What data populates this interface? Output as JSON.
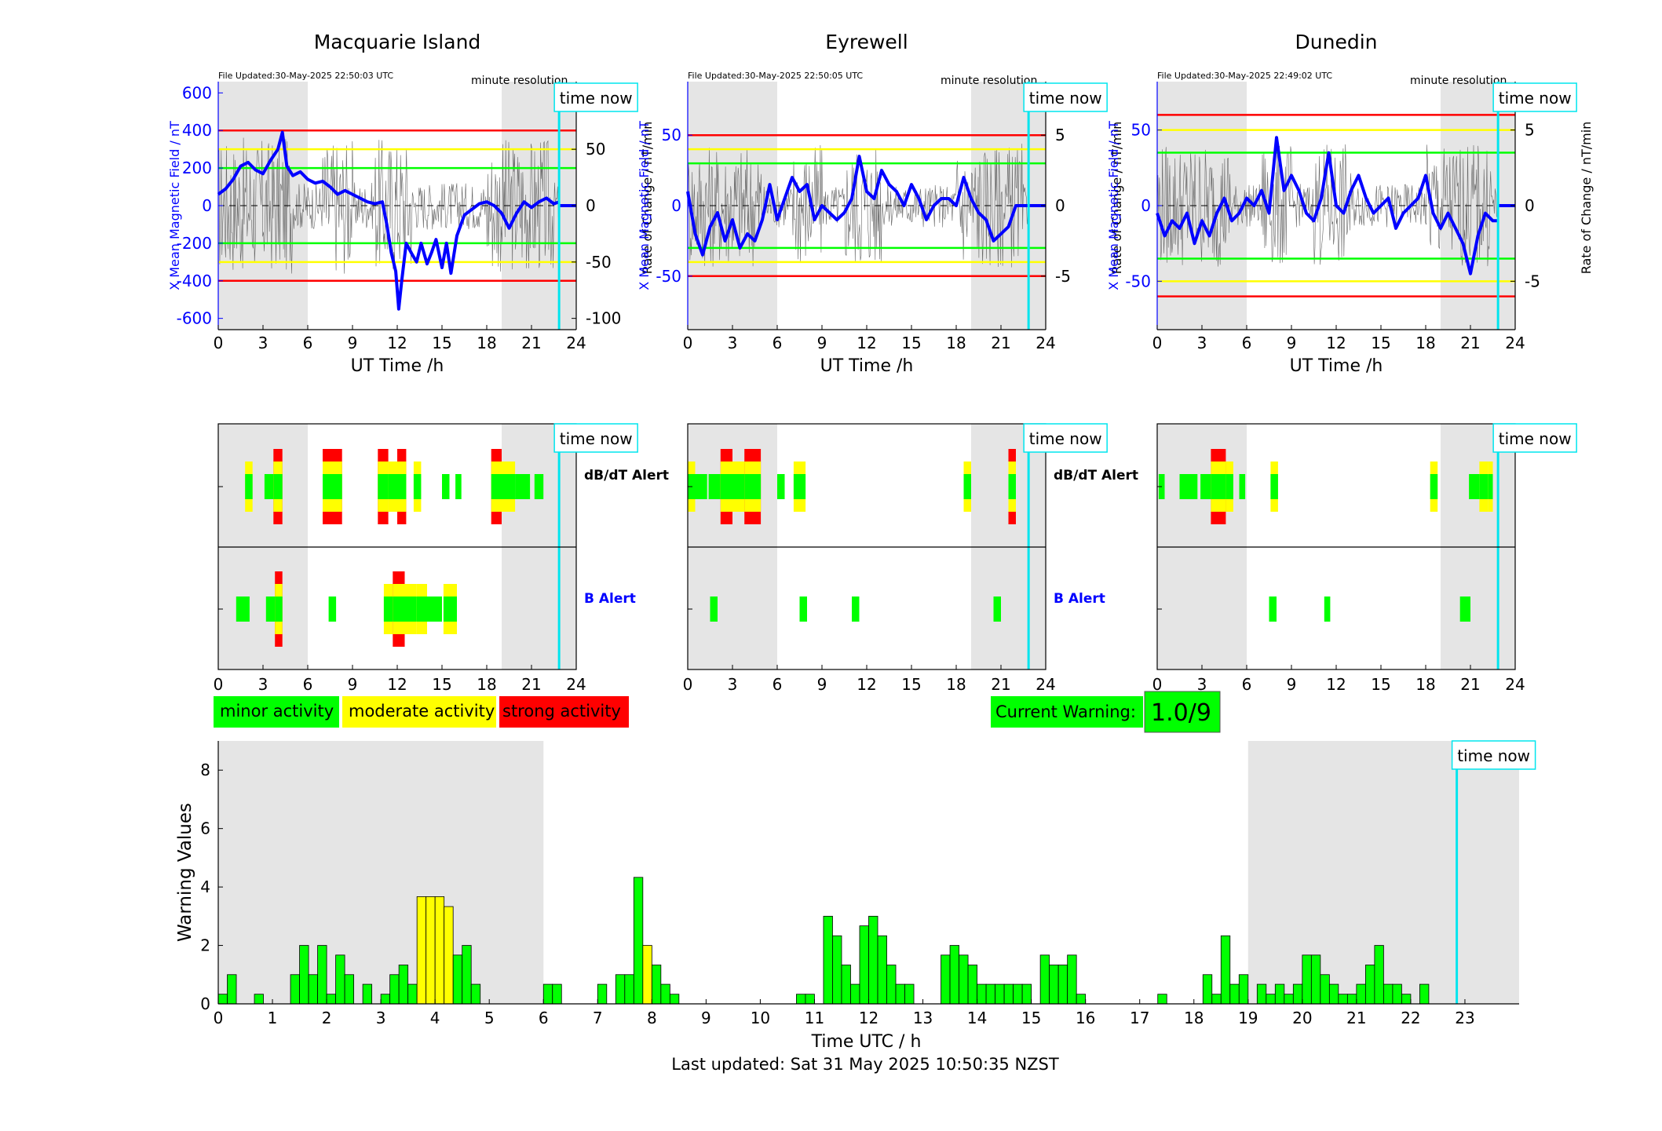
{
  "colors": {
    "blue": "#0000ff",
    "cyan": "#00e5ee",
    "red": "#ff0000",
    "yellow": "#ffff00",
    "green": "#00ff00",
    "night": "#e5e5e5",
    "grey_trace": "#666666"
  },
  "time_now_label": "time now",
  "footer": "Last updated: Sat 31 May 2025 10:50:35 NZST",
  "legend": {
    "minor": "minor activity",
    "moderate": "moderate activity",
    "strong": "strong activity"
  },
  "current_warning": {
    "label": "Current Warning:",
    "value": "1.0/9"
  },
  "alert_labels": {
    "dbdt": "dB/dT Alert",
    "b": "B Alert"
  },
  "stations": [
    {
      "name": "Macquarie Island",
      "file_updated": "File Updated:30-May-2025 22:50:03 UTC",
      "resolution": "minute resolution",
      "ylabel_left": "X Mean Magnetic Field / nT",
      "ylabel_right": "Rate of Change / nT/min",
      "xlabel": "UT Time /h",
      "left_ticks": [
        "600",
        "400",
        "200",
        "0",
        "-200",
        "-400",
        "-600"
      ],
      "right_ticks": [
        "100",
        "50",
        "0",
        "-50",
        "-100"
      ]
    },
    {
      "name": "Eyrewell",
      "file_updated": "File Updated:30-May-2025 22:50:05 UTC",
      "resolution": "minute resolution",
      "ylabel_left": "X Mean Magnetic Field / nT",
      "ylabel_right": "Rate of Change / nT/min",
      "xlabel": "UT Time /h",
      "left_ticks": [
        "50",
        "0",
        "-50"
      ],
      "right_ticks": [
        "5",
        "0",
        "-5"
      ]
    },
    {
      "name": "Dunedin",
      "file_updated": "File Updated:30-May-2025 22:49:02 UTC",
      "resolution": "minute resolution",
      "ylabel_left": "X Mean Magnetic Field / nT",
      "ylabel_right": "Rate of Change / nT/min",
      "xlabel": "UT Time /h",
      "left_ticks": [
        "50",
        "0",
        "-50"
      ],
      "right_ticks": [
        "5",
        "0",
        "-5"
      ]
    }
  ],
  "chart_data": [
    {
      "type": "line",
      "title": "Macquarie Island",
      "xlabel": "UT Time /h",
      "ylabel": "X Mean Magnetic Field / nT",
      "y2label": "Rate of Change / nT/min",
      "xlim": [
        0,
        24
      ],
      "ylim": [
        -660,
        660
      ],
      "y2lim": [
        -110,
        110
      ],
      "xticks": [
        0,
        3,
        6,
        9,
        12,
        15,
        18,
        21,
        24
      ],
      "yticks": [
        600,
        400,
        200,
        0,
        -200,
        -400,
        -600
      ],
      "y2ticks": [
        100,
        50,
        0,
        -50,
        -100
      ],
      "night_bands_h": [
        [
          0,
          6
        ],
        [
          19,
          24
        ]
      ],
      "time_now_h": 22.85,
      "thresholds": [
        {
          "color": "red",
          "value": 400
        },
        {
          "color": "yellow",
          "value": 300
        },
        {
          "color": "green",
          "value": 200
        }
      ],
      "x": [
        0,
        0.5,
        1,
        1.5,
        2,
        2.5,
        3,
        3.5,
        4,
        4.3,
        4.6,
        5,
        5.5,
        6,
        6.5,
        7,
        7.5,
        8,
        8.5,
        9,
        9.5,
        10,
        10.5,
        11,
        11.3,
        11.6,
        11.9,
        12.1,
        12.3,
        12.6,
        13,
        13.3,
        13.6,
        14,
        14.3,
        14.6,
        15,
        15.3,
        15.6,
        16,
        16.5,
        17,
        17.5,
        18,
        18.5,
        19,
        19.5,
        20,
        20.5,
        21,
        21.5,
        22,
        22.5,
        22.85
      ],
      "series": [
        {
          "values": [
            60,
            90,
            140,
            210,
            230,
            190,
            170,
            240,
            300,
            390,
            210,
            160,
            180,
            140,
            120,
            130,
            100,
            60,
            80,
            60,
            40,
            20,
            10,
            20,
            -100,
            -250,
            -350,
            -550,
            -400,
            -200,
            -260,
            -300,
            -200,
            -310,
            -250,
            -180,
            -330,
            -200,
            -360,
            -160,
            -50,
            -20,
            10,
            20,
            0,
            -40,
            -120,
            -40,
            20,
            -10,
            20,
            40,
            10,
            20
          ]
        }
      ]
    },
    {
      "type": "line",
      "title": "Eyrewell",
      "xlabel": "UT Time /h",
      "ylabel": "X Mean Magnetic Field / nT",
      "y2label": "Rate of Change / nT/min",
      "xlim": [
        0,
        24
      ],
      "ylim": [
        -88,
        88
      ],
      "y2lim": [
        -8.8,
        8.8
      ],
      "xticks": [
        0,
        3,
        6,
        9,
        12,
        15,
        18,
        21,
        24
      ],
      "yticks": [
        50,
        0,
        -50
      ],
      "y2ticks": [
        5,
        0,
        -5
      ],
      "night_bands_h": [
        [
          0,
          6
        ],
        [
          19,
          24
        ]
      ],
      "time_now_h": 22.85,
      "thresholds": [
        {
          "color": "red",
          "value": 50
        },
        {
          "color": "yellow",
          "value": 40
        },
        {
          "color": "green",
          "value": 30
        }
      ],
      "x": [
        0,
        0.5,
        1,
        1.5,
        2,
        2.5,
        3,
        3.5,
        4,
        4.5,
        5,
        5.5,
        6,
        6.5,
        7,
        7.5,
        8,
        8.5,
        9,
        9.5,
        10,
        10.5,
        11,
        11.5,
        12,
        12.5,
        13,
        13.5,
        14,
        14.5,
        15,
        15.5,
        16,
        16.5,
        17,
        17.5,
        18,
        18.5,
        19,
        19.5,
        20,
        20.5,
        21,
        21.5,
        22,
        22.5,
        22.85
      ],
      "series": [
        {
          "values": [
            10,
            -20,
            -35,
            -15,
            -5,
            -25,
            -10,
            -30,
            -20,
            -25,
            -10,
            15,
            -10,
            5,
            20,
            10,
            15,
            -10,
            0,
            -5,
            -10,
            -5,
            5,
            35,
            10,
            5,
            25,
            15,
            10,
            0,
            15,
            5,
            -10,
            0,
            5,
            5,
            0,
            20,
            5,
            -5,
            -10,
            -25,
            -20,
            -15,
            0,
            0,
            0
          ]
        }
      ]
    },
    {
      "type": "line",
      "title": "Dunedin",
      "xlabel": "UT Time /h",
      "ylabel": "X Mean Magnetic Field / nT",
      "y2label": "Rate of Change / nT/min",
      "xlim": [
        0,
        24
      ],
      "ylim": [
        -82,
        82
      ],
      "y2lim": [
        -8.2,
        8.2
      ],
      "xticks": [
        0,
        3,
        6,
        9,
        12,
        15,
        18,
        21,
        24
      ],
      "yticks": [
        50,
        0,
        -50
      ],
      "y2ticks": [
        5,
        0,
        -5
      ],
      "night_bands_h": [
        [
          0,
          6
        ],
        [
          19,
          24
        ]
      ],
      "time_now_h": 22.85,
      "thresholds": [
        {
          "color": "red",
          "value": 60
        },
        {
          "color": "yellow",
          "value": 50
        },
        {
          "color": "green",
          "value": 35
        }
      ],
      "x": [
        0,
        0.5,
        1,
        1.5,
        2,
        2.5,
        3,
        3.5,
        4,
        4.5,
        5,
        5.5,
        6,
        6.5,
        7,
        7.5,
        8,
        8.5,
        9,
        9.5,
        10,
        10.5,
        11,
        11.5,
        12,
        12.5,
        13,
        13.5,
        14,
        14.5,
        15,
        15.5,
        16,
        16.5,
        17,
        17.5,
        18,
        18.5,
        19,
        19.5,
        20,
        20.5,
        21,
        21.5,
        22,
        22.5,
        22.85
      ],
      "series": [
        {
          "values": [
            -5,
            -20,
            -10,
            -15,
            -5,
            -25,
            -10,
            -20,
            -5,
            5,
            -10,
            -5,
            5,
            0,
            10,
            -5,
            45,
            10,
            20,
            10,
            -5,
            -10,
            5,
            35,
            0,
            -5,
            10,
            20,
            5,
            -5,
            0,
            5,
            -15,
            -5,
            0,
            5,
            20,
            -5,
            -15,
            -5,
            -15,
            -25,
            -45,
            -20,
            -5,
            -10,
            -10
          ]
        }
      ]
    },
    {
      "type": "bar",
      "title": "Macquarie Island alerts",
      "xlim": [
        0,
        24
      ],
      "xticks": [
        0,
        3,
        6,
        9,
        12,
        15,
        18,
        21,
        24
      ],
      "night_bands_h": [
        [
          0,
          6
        ],
        [
          19,
          24
        ]
      ],
      "time_now_h": 22.85,
      "dbdt_alerts": [
        {
          "x": [
            1.8,
            2.3
          ],
          "level": 2
        },
        {
          "x": [
            3.1,
            3.7
          ],
          "level": 1
        },
        {
          "x": [
            3.7,
            4.3
          ],
          "level": 3
        },
        {
          "x": [
            7.0,
            8.3
          ],
          "level": 3
        },
        {
          "x": [
            10.7,
            11.4
          ],
          "level": 3
        },
        {
          "x": [
            11.4,
            12.0
          ],
          "level": 2
        },
        {
          "x": [
            12.0,
            12.6
          ],
          "level": 3
        },
        {
          "x": [
            13.1,
            13.6
          ],
          "level": 2
        },
        {
          "x": [
            15.0,
            15.5
          ],
          "level": 1
        },
        {
          "x": [
            15.9,
            16.3
          ],
          "level": 1
        },
        {
          "x": [
            18.3,
            19.0
          ],
          "level": 3
        },
        {
          "x": [
            19.0,
            19.9
          ],
          "level": 2
        },
        {
          "x": [
            19.9,
            20.9
          ],
          "level": 1
        },
        {
          "x": [
            21.2,
            21.8
          ],
          "level": 1
        }
      ],
      "b_alerts": [
        {
          "x": [
            1.2,
            2.1
          ],
          "level": 1
        },
        {
          "x": [
            3.2,
            3.8
          ],
          "level": 1
        },
        {
          "x": [
            3.8,
            4.3
          ],
          "level": 3
        },
        {
          "x": [
            7.4,
            7.9
          ],
          "level": 1
        },
        {
          "x": [
            11.1,
            11.7
          ],
          "level": 2
        },
        {
          "x": [
            11.7,
            12.5
          ],
          "level": 3
        },
        {
          "x": [
            12.5,
            13.3
          ],
          "level": 2
        },
        {
          "x": [
            13.3,
            14.0
          ],
          "level": 2
        },
        {
          "x": [
            14.0,
            15.0
          ],
          "level": 1
        },
        {
          "x": [
            15.1,
            16.0
          ],
          "level": 2
        }
      ]
    },
    {
      "type": "bar",
      "title": "Eyrewell alerts",
      "xlim": [
        0,
        24
      ],
      "xticks": [
        0,
        3,
        6,
        9,
        12,
        15,
        18,
        21,
        24
      ],
      "night_bands_h": [
        [
          0,
          6
        ],
        [
          19,
          24
        ]
      ],
      "time_now_h": 22.85,
      "dbdt_alerts": [
        {
          "x": [
            0,
            0.5
          ],
          "level": 2
        },
        {
          "x": [
            0.5,
            1.3
          ],
          "level": 1
        },
        {
          "x": [
            1.4,
            2.2
          ],
          "level": 1
        },
        {
          "x": [
            2.2,
            3.0
          ],
          "level": 3
        },
        {
          "x": [
            3.0,
            3.8
          ],
          "level": 2
        },
        {
          "x": [
            3.8,
            4.9
          ],
          "level": 3
        },
        {
          "x": [
            6.0,
            6.5
          ],
          "level": 1
        },
        {
          "x": [
            7.1,
            7.9
          ],
          "level": 2
        },
        {
          "x": [
            18.5,
            19.0
          ],
          "level": 2
        },
        {
          "x": [
            21.5,
            22.0
          ],
          "level": 3
        }
      ],
      "b_alerts": [
        {
          "x": [
            1.5,
            2.0
          ],
          "level": 1
        },
        {
          "x": [
            7.5,
            8.0
          ],
          "level": 1
        },
        {
          "x": [
            11.0,
            11.5
          ],
          "level": 1
        },
        {
          "x": [
            20.5,
            21.0
          ],
          "level": 1
        }
      ]
    },
    {
      "type": "bar",
      "title": "Dunedin alerts",
      "xlim": [
        0,
        24
      ],
      "xticks": [
        0,
        3,
        6,
        9,
        12,
        15,
        18,
        21,
        24
      ],
      "night_bands_h": [
        [
          0,
          6
        ],
        [
          19,
          24
        ]
      ],
      "time_now_h": 22.85,
      "dbdt_alerts": [
        {
          "x": [
            0.1,
            0.5
          ],
          "level": 1
        },
        {
          "x": [
            1.5,
            2.7
          ],
          "level": 1
        },
        {
          "x": [
            2.9,
            3.6
          ],
          "level": 1
        },
        {
          "x": [
            3.6,
            4.6
          ],
          "level": 3
        },
        {
          "x": [
            4.6,
            5.1
          ],
          "level": 2
        },
        {
          "x": [
            5.5,
            5.9
          ],
          "level": 1
        },
        {
          "x": [
            7.6,
            8.1
          ],
          "level": 2
        },
        {
          "x": [
            18.3,
            18.8
          ],
          "level": 2
        },
        {
          "x": [
            20.9,
            21.6
          ],
          "level": 1
        },
        {
          "x": [
            21.6,
            22.2
          ],
          "level": 2
        },
        {
          "x": [
            22.2,
            22.5
          ],
          "level": 2
        }
      ],
      "b_alerts": [
        {
          "x": [
            7.5,
            8.0
          ],
          "level": 1
        },
        {
          "x": [
            11.2,
            11.6
          ],
          "level": 1
        },
        {
          "x": [
            20.3,
            21.0
          ],
          "level": 1
        }
      ]
    },
    {
      "type": "bar",
      "title": "",
      "xlabel": "Time UTC / h",
      "ylabel": "Warning Values",
      "xlim": [
        0,
        24
      ],
      "ylim": [
        0,
        9
      ],
      "xticks": [
        0,
        1,
        2,
        3,
        4,
        5,
        6,
        7,
        8,
        9,
        10,
        11,
        12,
        13,
        14,
        15,
        16,
        17,
        18,
        19,
        20,
        21,
        22,
        23
      ],
      "yticks": [
        0,
        2,
        4,
        6,
        8
      ],
      "night_bands_h": [
        [
          0,
          6
        ],
        [
          19,
          24
        ]
      ],
      "time_now_h": 22.85,
      "bar_width_h": 0.1667,
      "x": [
        0,
        0.1667,
        0.6667,
        1.3333,
        1.5,
        1.6667,
        1.8333,
        2.0,
        2.1667,
        2.3333,
        2.6667,
        3.0,
        3.1667,
        3.3333,
        3.5,
        3.6667,
        3.8333,
        4.0,
        4.1667,
        4.3333,
        4.5,
        4.6667,
        6.0,
        6.1667,
        7.0,
        7.3333,
        7.5,
        7.6667,
        7.8333,
        8.0,
        8.1667,
        8.3333,
        10.6667,
        10.8333,
        11.1667,
        11.3333,
        11.5,
        11.6667,
        11.8333,
        12.0,
        12.1667,
        12.3333,
        12.5,
        12.6667,
        13.3333,
        13.5,
        13.6667,
        13.8333,
        14.0,
        14.1667,
        14.3333,
        14.5,
        14.6667,
        14.8333,
        15.1667,
        15.3333,
        15.5,
        15.6667,
        15.8333,
        17.3333,
        18.1667,
        18.3333,
        18.5,
        18.6667,
        18.8333,
        19.1667,
        19.3333,
        19.5,
        19.6667,
        19.8333,
        20.0,
        20.1667,
        20.3333,
        20.5,
        20.6667,
        20.8333,
        21.0,
        21.1667,
        21.3333,
        21.5,
        21.6667,
        21.8333,
        22.1667
      ],
      "values": [
        0.33,
        1,
        0.33,
        1,
        2,
        1,
        2,
        0.33,
        1.67,
        1,
        0.67,
        0.33,
        1,
        1.33,
        0.67,
        3.67,
        3.67,
        3.67,
        3.33,
        1.67,
        2,
        0.67,
        0.67,
        0.67,
        0.67,
        1,
        1,
        4.33,
        2,
        1.33,
        0.67,
        0.33,
        0.33,
        0.33,
        3,
        2.33,
        1.33,
        0.67,
        2.67,
        3,
        2.33,
        1.33,
        0.67,
        0.67,
        1.67,
        2,
        1.67,
        1.33,
        0.67,
        0.67,
        0.67,
        0.67,
        0.67,
        0.67,
        1.67,
        1.33,
        1.33,
        1.67,
        0.33,
        0.33,
        1,
        0.33,
        2.33,
        0.67,
        1,
        0.67,
        0.33,
        0.67,
        0.33,
        0.67,
        1.67,
        1.67,
        1,
        0.67,
        0.33,
        0.33,
        0.67,
        1.33,
        2,
        0.67,
        0.67,
        0.33,
        0.67
      ],
      "yellow_indices": [
        15,
        16,
        17,
        18,
        28
      ]
    }
  ]
}
